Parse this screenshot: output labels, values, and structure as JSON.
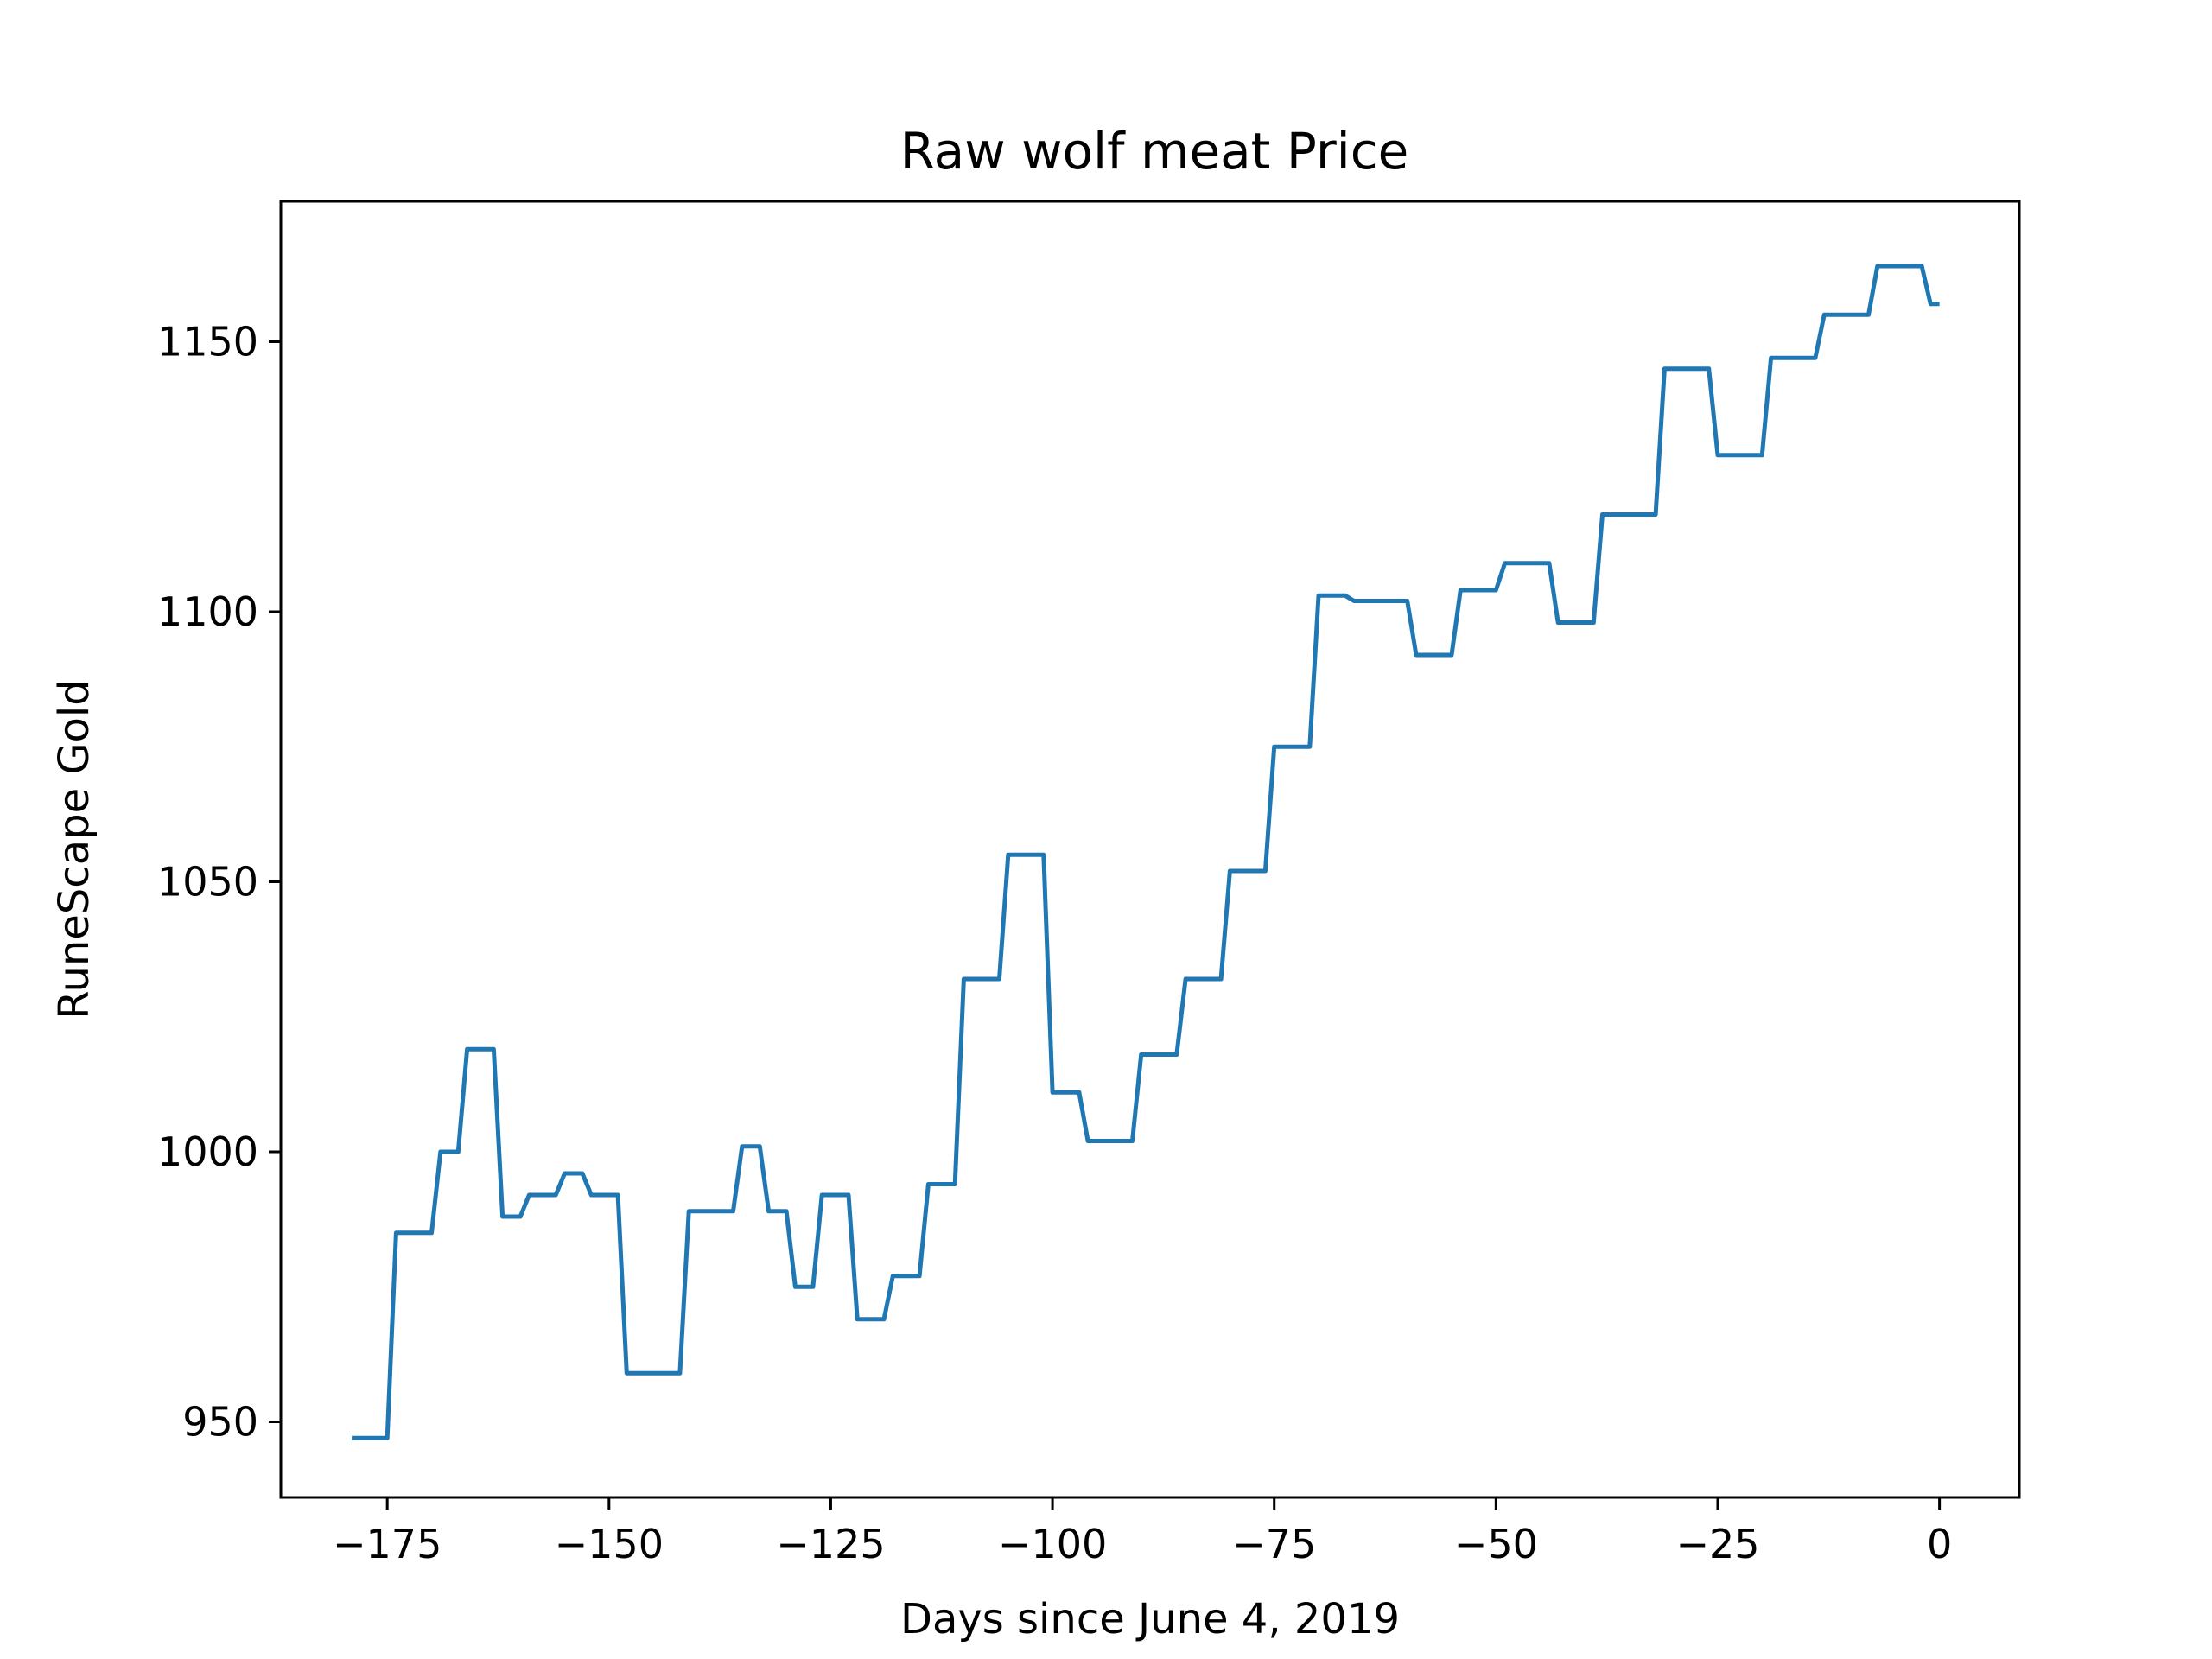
{
  "chart_data": {
    "type": "line",
    "title": "Raw wolf meat Price",
    "xlabel": "Days since June 4, 2019",
    "ylabel": "RuneScape Gold",
    "xlim": [
      -187,
      9
    ],
    "ylim": [
      936,
      1176
    ],
    "x_ticks": [
      -175,
      -150,
      -125,
      -100,
      -75,
      -50,
      -25,
      0
    ],
    "x_tick_labels": [
      "−175",
      "−150",
      "−125",
      "−100",
      "−75",
      "−50",
      "−25",
      "0"
    ],
    "y_ticks": [
      950,
      1000,
      1050,
      1100,
      1150
    ],
    "y_tick_labels": [
      "950",
      "1000",
      "1050",
      "1100",
      "1150"
    ],
    "grid": false,
    "series": [
      {
        "color": "#1f77b4",
        "x": [
          -179,
          -175,
          -174,
          -170,
          -169,
          -167,
          -166,
          -163,
          -162,
          -160,
          -159,
          -156,
          -155,
          -153,
          -152,
          -149,
          -148,
          -142,
          -141,
          -136,
          -135,
          -133,
          -132,
          -130,
          -129,
          -127,
          -126,
          -123,
          -122,
          -119,
          -118,
          -115,
          -114,
          -111,
          -110,
          -106,
          -105,
          -101,
          -100,
          -97,
          -96,
          -91,
          -90,
          -86,
          -85,
          -81,
          -80,
          -76,
          -75,
          -71,
          -70,
          -67,
          -66,
          -60,
          -59,
          -55,
          -54,
          -50,
          -49,
          -44,
          -43,
          -39,
          -38,
          -32,
          -31,
          -26,
          -25,
          -20,
          -19,
          -14,
          -13,
          -8,
          -7,
          -2,
          -1,
          0
        ],
        "values": [
          947,
          947,
          985,
          985,
          1000,
          1000,
          1019,
          1019,
          988,
          988,
          992,
          992,
          996,
          996,
          992,
          992,
          959,
          959,
          989,
          989,
          1001,
          1001,
          989,
          989,
          975,
          975,
          992,
          992,
          969,
          969,
          977,
          977,
          994,
          994,
          1032,
          1032,
          1055,
          1055,
          1011,
          1011,
          1002,
          1002,
          1018,
          1018,
          1032,
          1032,
          1052,
          1052,
          1075,
          1075,
          1103,
          1103,
          1102,
          1102,
          1092,
          1092,
          1104,
          1104,
          1109,
          1109,
          1098,
          1098,
          1118,
          1118,
          1145,
          1145,
          1129,
          1129,
          1147,
          1147,
          1155,
          1155,
          1164,
          1164,
          1157,
          1157
        ]
      }
    ]
  }
}
